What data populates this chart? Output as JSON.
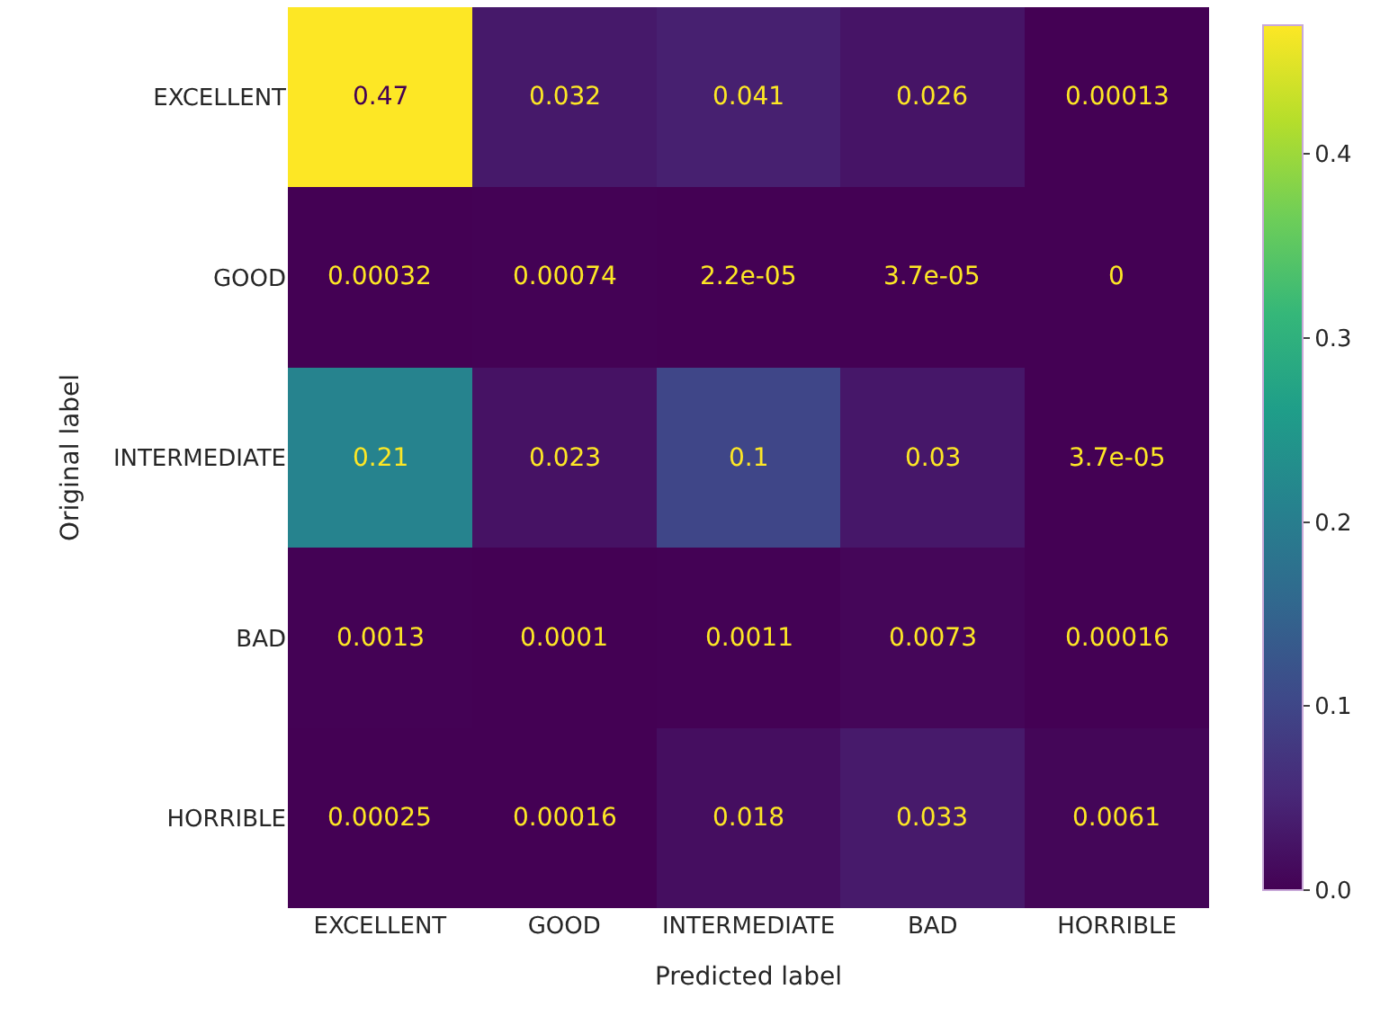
{
  "chart_data": {
    "type": "heatmap",
    "xlabel": "Predicted label",
    "ylabel": "Original label",
    "categories": [
      "EXCELLENT",
      "GOOD",
      "INTERMEDIATE",
      "BAD",
      "HORRIBLE"
    ],
    "y_categories": [
      "EXCELLENT",
      "GOOD",
      "INTERMEDIATE",
      "BAD",
      "HORRIBLE"
    ],
    "cells": [
      [
        0.47,
        0.032,
        0.041,
        0.026,
        0.00013
      ],
      [
        0.00032,
        0.00074,
        2.2e-05,
        3.7e-05,
        0
      ],
      [
        0.21,
        0.023,
        0.1,
        0.03,
        3.7e-05
      ],
      [
        0.0013,
        0.0001,
        0.0011,
        0.0073,
        0.00016
      ],
      [
        0.00025,
        0.00016,
        0.018,
        0.033,
        0.0061
      ]
    ],
    "data_labels": true,
    "cticks": [
      "0.0",
      "0.1",
      "0.2",
      "0.3",
      "0.4"
    ]
  }
}
